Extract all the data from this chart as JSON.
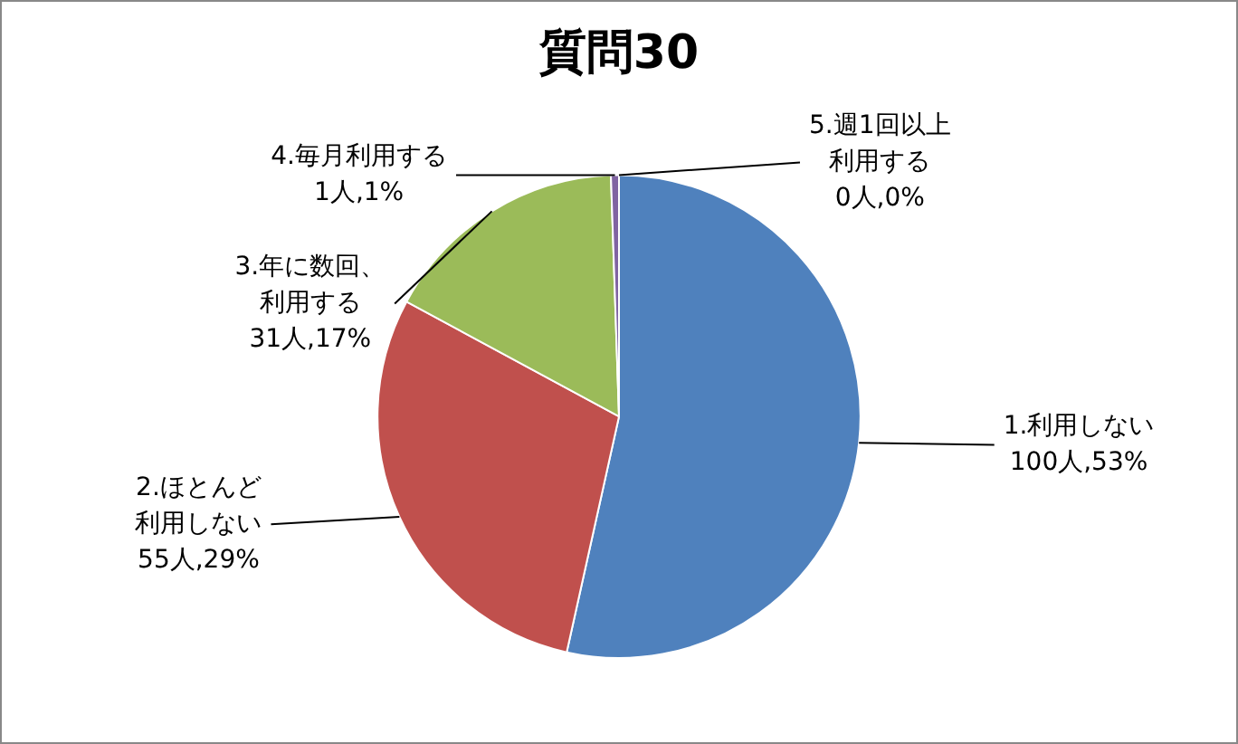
{
  "chart_data": {
    "type": "pie",
    "title": "質問30",
    "categories": [
      "1.利用しない",
      "2.ほとんど利用しない",
      "3.年に数回、利用する",
      "4.毎月利用する",
      "5.週1回以上利用する"
    ],
    "values": [
      100,
      55,
      31,
      1,
      0
    ],
    "value_labels": [
      "100人,53%",
      "55人,29%",
      "31人,17%",
      "1人,1%",
      "0人,0%"
    ],
    "colors": [
      "#4f81bd",
      "#c0504d",
      "#9bbb59",
      "#8064a2",
      "#4bacc6"
    ],
    "legend": false
  }
}
